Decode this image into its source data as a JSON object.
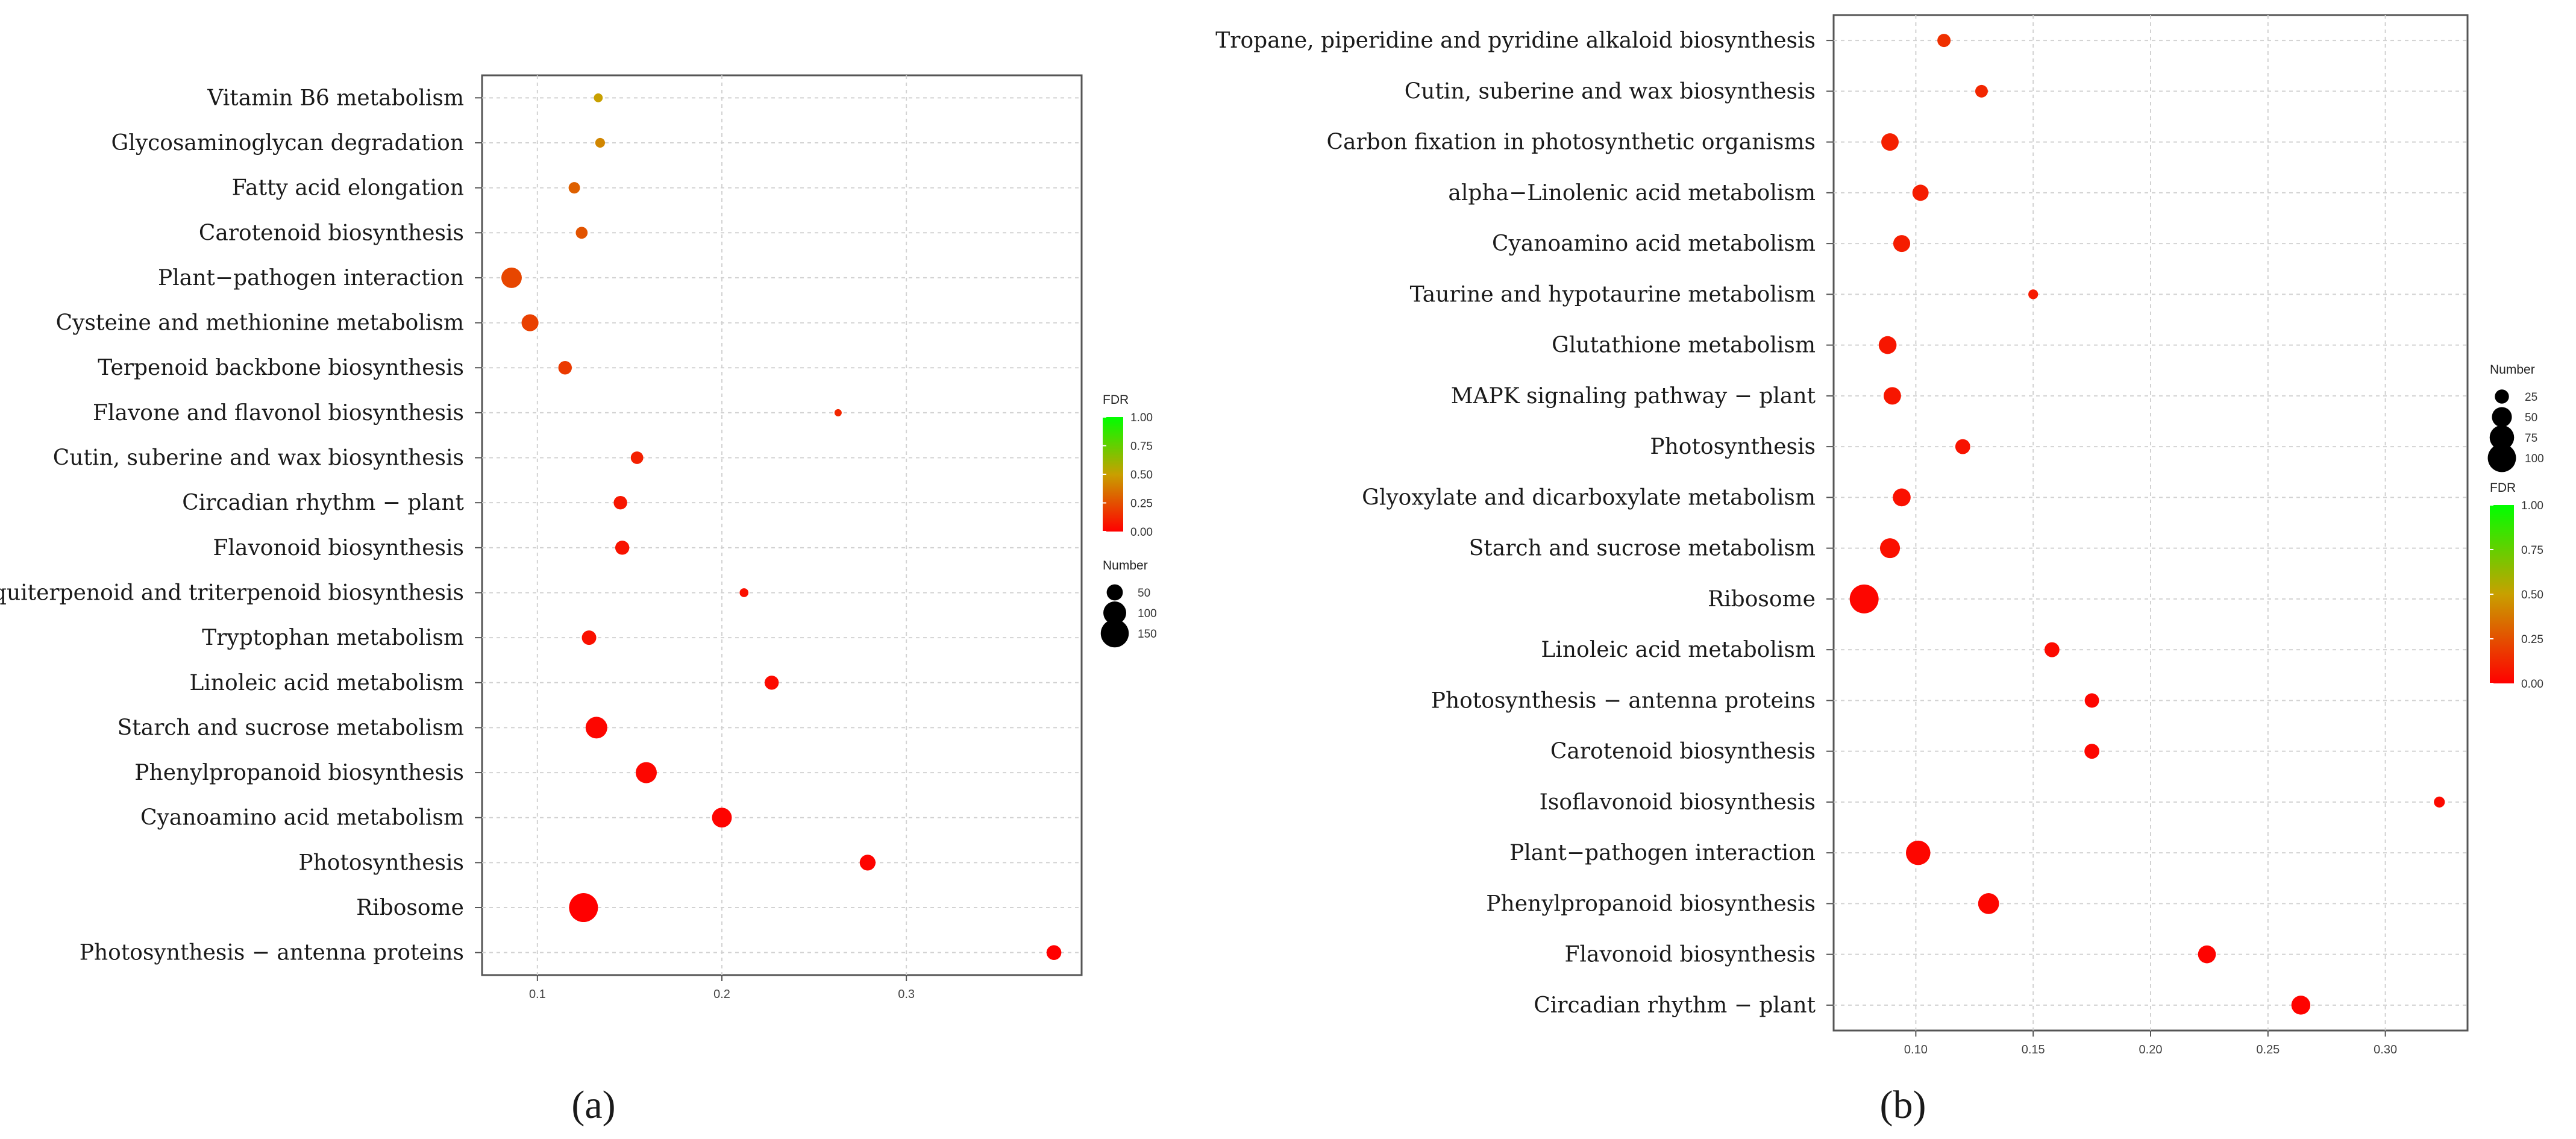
{
  "colors": {
    "fdr_low": "#ff0000",
    "fdr_mid": "#c8a000",
    "fdr_high": "#00ff00"
  },
  "chart_data": [
    {
      "type": "scatter",
      "panel_label": "(a)",
      "xlabel": "",
      "ylabel": "",
      "xlim": [
        0.07,
        0.395
      ],
      "x_ticks": [
        0.1,
        0.2,
        0.3
      ],
      "x_tick_labels": [
        "0.1",
        "0.2",
        "0.3"
      ],
      "grid": true,
      "legend_position": "right",
      "color_legend": {
        "title": "FDR",
        "ticks": [
          "1.00",
          "0.75",
          "0.50",
          "0.25",
          "0.00"
        ]
      },
      "size_legend": {
        "title": "Number",
        "values": [
          50,
          100,
          150
        ]
      },
      "size_range": [
        20,
        210
      ],
      "categories": [
        "Vitamin B6 metabolism",
        "Glycosaminoglycan degradation",
        "Fatty acid elongation",
        "Carotenoid biosynthesis",
        "Plant−pathogen interaction",
        "Cysteine and methionine metabolism",
        "Terpenoid backbone biosynthesis",
        "Flavone and flavonol biosynthesis",
        "Cutin, suberine and wax biosynthesis",
        "Circadian rhythm − plant",
        "Flavonoid biosynthesis",
        "Sesquiterpenoid and triterpenoid biosynthesis",
        "Tryptophan metabolism",
        "Linoleic acid metabolism",
        "Starch and sucrose metabolism",
        "Phenylpropanoid biosynthesis",
        "Cyanoamino acid metabolism",
        "Photosynthesis",
        "Ribosome",
        "Photosynthesis − antenna proteins"
      ],
      "rich_factor": [
        0.133,
        0.134,
        0.12,
        0.124,
        0.086,
        0.096,
        0.115,
        0.263,
        0.154,
        0.145,
        0.146,
        0.212,
        0.128,
        0.227,
        0.132,
        0.159,
        0.2,
        0.279,
        0.125,
        0.38
      ],
      "number": [
        15,
        18,
        25,
        27,
        80,
        55,
        35,
        10,
        30,
        35,
        38,
        15,
        40,
        38,
        90,
        85,
        75,
        48,
        160,
        42
      ],
      "fdr": [
        0.5,
        0.42,
        0.3,
        0.26,
        0.22,
        0.2,
        0.18,
        0.12,
        0.1,
        0.07,
        0.06,
        0.05,
        0.05,
        0.03,
        0.02,
        0.02,
        0.01,
        0.01,
        0.0,
        0.0
      ]
    },
    {
      "type": "scatter",
      "panel_label": "(b)",
      "xlabel": "",
      "ylabel": "",
      "xlim": [
        0.065,
        0.335
      ],
      "x_ticks": [
        0.1,
        0.15,
        0.2,
        0.25,
        0.3
      ],
      "x_tick_labels": [
        "0.10",
        "0.15",
        "0.20",
        "0.25",
        "0.30"
      ],
      "grid": true,
      "legend_position": "right",
      "color_legend": {
        "title": "FDR",
        "ticks": [
          "1.00",
          "0.75",
          "0.50",
          "0.25",
          "0.00"
        ]
      },
      "size_legend": {
        "title": "Number",
        "values": [
          25,
          50,
          75,
          100
        ]
      },
      "size_range": [
        10,
        110
      ],
      "categories": [
        "Tropane, piperidine and pyridine alkaloid biosynthesis",
        "Cutin, suberine and wax biosynthesis",
        "Carbon fixation in photosynthetic organisms",
        "alpha−Linolenic acid metabolism",
        "Cyanoamino acid metabolism",
        "Taurine and hypotaurine metabolism",
        "Glutathione metabolism",
        "MAPK signaling pathway − plant",
        "Photosynthesis",
        "Glyoxylate and dicarboxylate metabolism",
        "Starch and sucrose metabolism",
        "Ribosome",
        "Linoleic acid metabolism",
        "Photosynthesis − antenna proteins",
        "Carotenoid biosynthesis",
        "Isoflavonoid biosynthesis",
        "Plant−pathogen interaction",
        "Phenylpropanoid biosynthesis",
        "Flavonoid biosynthesis",
        "Circadian rhythm − plant"
      ],
      "rich_factor": [
        0.112,
        0.128,
        0.089,
        0.102,
        0.094,
        0.15,
        0.088,
        0.09,
        0.12,
        0.094,
        0.089,
        0.078,
        0.158,
        0.175,
        0.175,
        0.323,
        0.101,
        0.131,
        0.224,
        0.264
      ],
      "number": [
        22,
        20,
        38,
        33,
        36,
        12,
        40,
        38,
        28,
        40,
        50,
        105,
        28,
        26,
        28,
        15,
        75,
        55,
        40,
        45
      ],
      "fdr": [
        0.15,
        0.12,
        0.1,
        0.09,
        0.09,
        0.08,
        0.07,
        0.07,
        0.06,
        0.05,
        0.05,
        0.02,
        0.03,
        0.02,
        0.02,
        0.03,
        0.02,
        0.02,
        0.01,
        0.01
      ]
    }
  ]
}
